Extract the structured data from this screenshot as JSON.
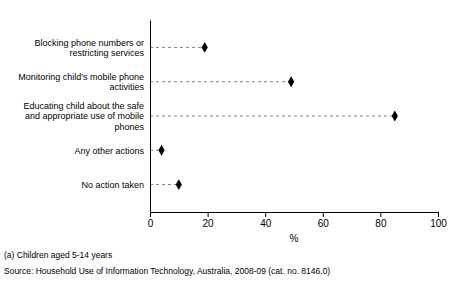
{
  "chart_data": {
    "type": "dot",
    "orientation": "horizontal",
    "categories": [
      "Blocking phone numbers or restricting services",
      "Monitoring child's mobile phone activities",
      "Educating child about the safe and appropriate use of mobile phones",
      "Any other actions",
      "No action taken"
    ],
    "values": [
      19,
      49,
      85,
      4,
      10
    ],
    "color": "#000000",
    "marker": "diamond",
    "line_style": "dashed",
    "xlim": [
      0,
      100
    ],
    "xticks": [
      0,
      20,
      40,
      60,
      80,
      100
    ],
    "xlabel": "%",
    "annotations": [
      "(a) Children aged 5-14 years",
      "Source: Household Use of Information Technology, Australia, 2008-09 (cat. no. 8146.0)"
    ],
    "grid": false
  }
}
